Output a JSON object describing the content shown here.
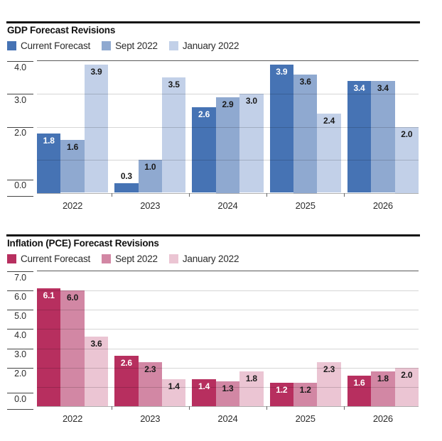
{
  "figure": {
    "background": "#ffffff"
  },
  "chart_data": [
    {
      "type": "bar",
      "title": "GDP Forecast Revisions",
      "categories": [
        "2022",
        "2023",
        "2024",
        "2025",
        "2026"
      ],
      "series": [
        {
          "name": "Current Forecast",
          "color": "#4673b4",
          "values": [
            1.8,
            0.3,
            2.6,
            3.9,
            3.4
          ],
          "labels": [
            "1.8",
            "0.3",
            "2.6",
            "3.9",
            "3.4"
          ]
        },
        {
          "name": "Sept 2022",
          "color": "#8fa9d0",
          "values": [
            1.6,
            1.0,
            2.9,
            3.6,
            3.4
          ],
          "labels": [
            "1.6",
            "1.0",
            "2.9",
            "3.6",
            "3.4"
          ]
        },
        {
          "name": "January 2022",
          "color": "#c2d0e8",
          "values": [
            3.9,
            3.5,
            3.0,
            2.4,
            2.0
          ],
          "labels": [
            "3.9",
            "3.5",
            "3.0",
            "2.4",
            "2.0"
          ]
        }
      ],
      "ylim": [
        0,
        4
      ],
      "yticks": [
        "4.0",
        "3.0",
        "2.0",
        "0.0"
      ],
      "grid": "horizontal",
      "legend_position": "top-left",
      "xlabel": "",
      "ylabel": ""
    },
    {
      "type": "bar",
      "title": "Inflation (PCE) Forecast Revisions",
      "categories": [
        "2022",
        "2023",
        "2024",
        "2025",
        "2026"
      ],
      "series": [
        {
          "name": "Current Forecast",
          "color": "#b72f5f",
          "values": [
            6.1,
            2.6,
            1.4,
            1.2,
            1.6
          ],
          "labels": [
            "6.1",
            "2.6",
            "1.4",
            "1.2",
            "1.6"
          ]
        },
        {
          "name": "Sept 2022",
          "color": "#d287a4",
          "values": [
            6.0,
            2.3,
            1.3,
            1.2,
            1.8
          ],
          "labels": [
            "6.0",
            "2.3",
            "1.3",
            "1.2",
            "1.8"
          ]
        },
        {
          "name": "January 2022",
          "color": "#ebc5d3",
          "values": [
            3.6,
            1.4,
            1.8,
            2.3,
            2.0
          ],
          "labels": [
            "3.6",
            "1.4",
            "1.8",
            "2.3",
            "2.0"
          ]
        }
      ],
      "ylim": [
        0,
        7
      ],
      "yticks": [
        "7.0",
        "6.0",
        "5.0",
        "4.0",
        "3.0",
        "2.0",
        "0.0"
      ],
      "grid": "horizontal",
      "legend_position": "top-left",
      "xlabel": "",
      "ylabel": ""
    }
  ]
}
